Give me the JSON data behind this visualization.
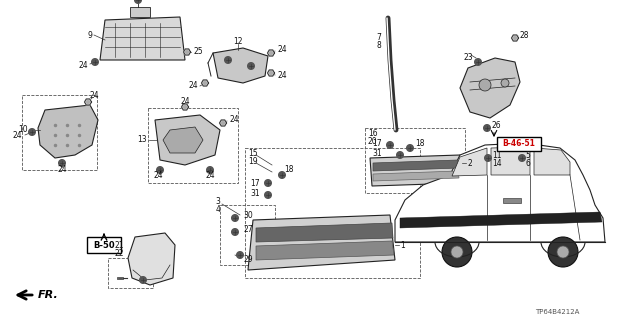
{
  "bg_color": "#ffffff",
  "fig_width": 6.4,
  "fig_height": 3.2,
  "dpi": 100,
  "lc": "#222222",
  "fs": 5.5,
  "diagram_code": "TP64B4212A"
}
